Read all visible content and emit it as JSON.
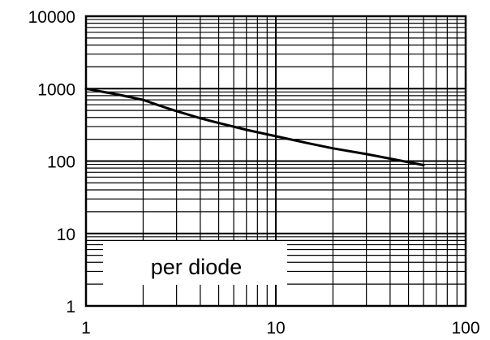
{
  "chart_data": {
    "type": "line",
    "title": "",
    "xlabel": "",
    "ylabel": "",
    "x_scale": "log",
    "y_scale": "log",
    "xlim": [
      1,
      100
    ],
    "ylim": [
      1,
      10000
    ],
    "grid": true,
    "x_ticks": [
      "1",
      "10",
      "100"
    ],
    "y_ticks": [
      "10000",
      "1000",
      "100",
      "10",
      "1"
    ],
    "annotation": "per diode",
    "series": [
      {
        "x": [
          1,
          1.5,
          2,
          2.5,
          3,
          4,
          5,
          7,
          10,
          15,
          20,
          30,
          40,
          60
        ],
        "y": [
          1000,
          820,
          700,
          570,
          490,
          390,
          335,
          270,
          220,
          175,
          150,
          125,
          108,
          88
        ],
        "color": "#000000"
      }
    ]
  }
}
